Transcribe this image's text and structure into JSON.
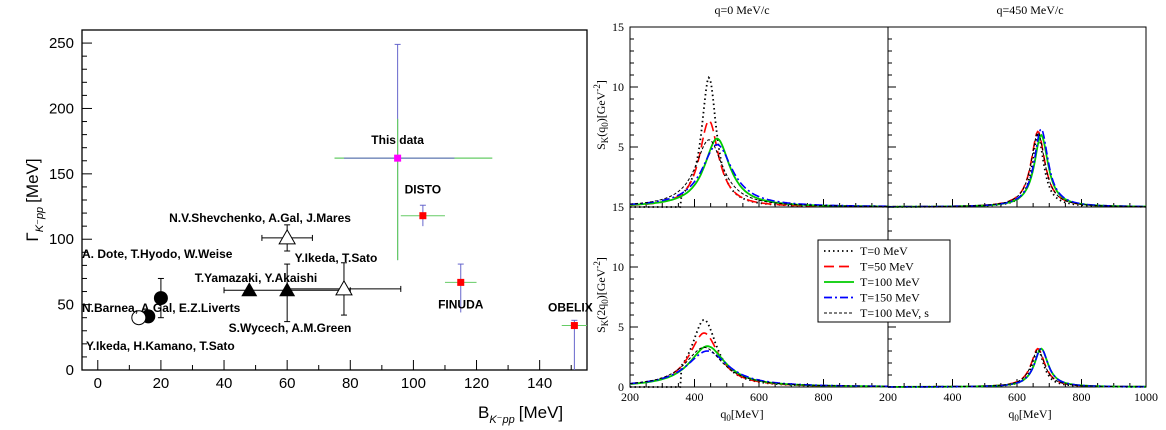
{
  "chart_data": [
    {
      "type": "scatter",
      "xlabel": "B",
      "xlabel_sub": "K⁻pp",
      "xlabel_unit": "[MeV]",
      "ylabel": "Γ",
      "ylabel_sub": "K⁻pp",
      "ylabel_unit": "[MeV]",
      "xlim": [
        -5,
        155
      ],
      "ylim": [
        0,
        260
      ],
      "xticks": [
        "0",
        "20",
        "40",
        "60",
        "80",
        "100",
        "120",
        "140"
      ],
      "yticks": [
        "0",
        "50",
        "100",
        "150",
        "200",
        "250"
      ],
      "points": [
        {
          "marker": "filled-circle",
          "color": "#000000",
          "x": 20,
          "y": 55,
          "yerr": [
            15,
            15
          ],
          "xerr": [
            0,
            0
          ],
          "label": ""
        },
        {
          "marker": "filled-circle",
          "color": "#000000",
          "x": 16,
          "y": 41,
          "yerr": [
            0,
            0
          ],
          "xerr": [
            0,
            0
          ],
          "label": ""
        },
        {
          "marker": "open-circle",
          "color": "#000000",
          "x": 13,
          "y": 40,
          "yerr": [
            0,
            0
          ],
          "xerr": [
            0,
            0
          ],
          "label": ""
        },
        {
          "marker": "filled-triangle",
          "color": "#000000",
          "x": 48,
          "y": 61,
          "yerr": [
            0,
            0
          ],
          "xerr": [
            0,
            0
          ],
          "label": ""
        },
        {
          "marker": "filled-triangle",
          "color": "#000000",
          "x": 60,
          "y": 61,
          "yerr": [
            24,
            20
          ],
          "xerr": [
            20,
            20
          ],
          "label": ""
        },
        {
          "marker": "open-triangle",
          "color": "#000000",
          "x": 60,
          "y": 101,
          "yerr": [
            10,
            10
          ],
          "xerr": [
            8,
            8
          ],
          "label": ""
        },
        {
          "marker": "open-triangle",
          "color": "#000000",
          "x": 78,
          "y": 62,
          "yerr": [
            20,
            20
          ],
          "xerr": [
            18,
            18
          ],
          "label": ""
        },
        {
          "marker": "square",
          "color": "#ff00ff",
          "x": 95,
          "y": 162,
          "yerr_stat": [
            78,
            87
          ],
          "xerr_stat": [
            17,
            18
          ],
          "label": "This data"
        },
        {
          "marker": "square",
          "color": "#ff0000",
          "x": 103,
          "y": 118,
          "yerr_stat": [
            8,
            8
          ],
          "xerr_stat": [
            7,
            7
          ],
          "label": "DISTO"
        },
        {
          "marker": "square",
          "color": "#ff0000",
          "x": 115,
          "y": 67,
          "yerr_stat": [
            23,
            14
          ],
          "xerr_stat": [
            5,
            5
          ],
          "label": "FINUDA"
        },
        {
          "marker": "square",
          "color": "#ff0000",
          "x": 151,
          "y": 34,
          "yerr_stat": [
            34,
            4
          ],
          "xerr_stat": [
            4,
            4
          ],
          "label": "OBELIX"
        }
      ],
      "annotations": [
        "N.V.Shevchenko, A.Gal, J.Mares",
        "A. Dote, T.Hyodo, W.Weise",
        "Y.Ikeda, T.Sato",
        "T.Yamazaki, Y.Akaishi",
        "N.Barnea, A.Gal, E.Z.Liverts",
        "S.Wycech, A.M.Green",
        "Y.Ikeda, H.Kamano, T.Sato"
      ]
    },
    {
      "type": "line",
      "panels": [
        {
          "title": "q=0 MeV/c",
          "ylabel": "S_K(q_0)[GeV^-2]",
          "yticks": [
            "5",
            "10",
            "15"
          ],
          "xticks": [],
          "peak_x": 445,
          "peak_heights": {
            "T=0": 10.8,
            "T=50": 7.2,
            "T=100": 5.7,
            "T=150": 5.2,
            "T=100s": 5.6
          }
        },
        {
          "title": "q=450 MeV/c",
          "ylabel": "",
          "yticks": [],
          "xticks": [],
          "peak_x": 665,
          "peak_heights": {
            "T=0": 6.0,
            "T=50": 6.3,
            "T=100": 6.0,
            "T=150": 6.5,
            "T=100s": 6.2
          }
        },
        {
          "title": "",
          "ylabel": "S_K(2q_0)[GeV^-2]",
          "yticks": [
            "0",
            "5",
            "10",
            "15"
          ],
          "xticks": [
            "200",
            "400",
            "600",
            "800",
            "200"
          ],
          "xlabel": "q_0[MeV]",
          "peak_x": 430,
          "peak_heights": {
            "T=0": 5.6,
            "T=50": 4.5,
            "T=100": 3.4,
            "T=150": 3.0,
            "T=100s": 3.3
          }
        },
        {
          "title": "",
          "ylabel": "",
          "yticks": [],
          "xticks": [
            "400",
            "600",
            "800",
            "1000"
          ],
          "xlabel": "q_0[MeV]",
          "peak_x": 665,
          "peak_heights": {
            "T=0": 3.1,
            "T=50": 3.2,
            "T=100": 3.2,
            "T=150": 3.2,
            "T=100s": 3.1
          }
        }
      ],
      "xlim": [
        200,
        1000
      ],
      "ylim": [
        0,
        15
      ],
      "legend": {
        "placement": "center",
        "entries": [
          {
            "label": "T=0 MeV",
            "color": "#000000",
            "style": "dotted"
          },
          {
            "label": "T=50 MeV",
            "color": "#ff0000",
            "style": "dashed"
          },
          {
            "label": "T=100 MeV",
            "color": "#00cc00",
            "style": "solid"
          },
          {
            "label": "T=150 MeV",
            "color": "#0000ff",
            "style": "dash-dot"
          },
          {
            "label": "T=100 MeV, s",
            "color": "#000000",
            "style": "short-dash"
          }
        ]
      }
    }
  ]
}
